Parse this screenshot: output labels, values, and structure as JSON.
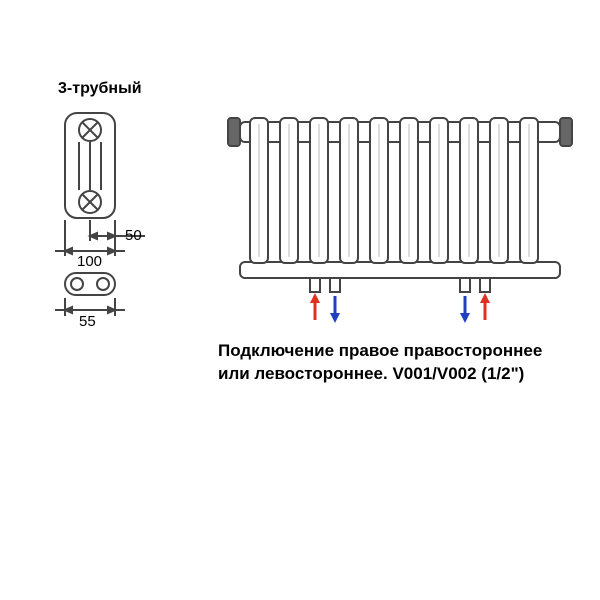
{
  "title_left": "3-трубный",
  "dimensions": {
    "width_full": "100",
    "width_half": "50",
    "depth": "55"
  },
  "caption_line1": "Подключение правое правостороннее",
  "caption_line2": "или левостороннее. V001/V002 (1/2\")",
  "diagram": {
    "stroke": "#444444",
    "stroke_width": 2,
    "arrow_red": "#e03020",
    "arrow_blue": "#2040c0",
    "radiator_sections": 10,
    "section_height": 145,
    "section_width": 18,
    "section_gap": 12
  }
}
